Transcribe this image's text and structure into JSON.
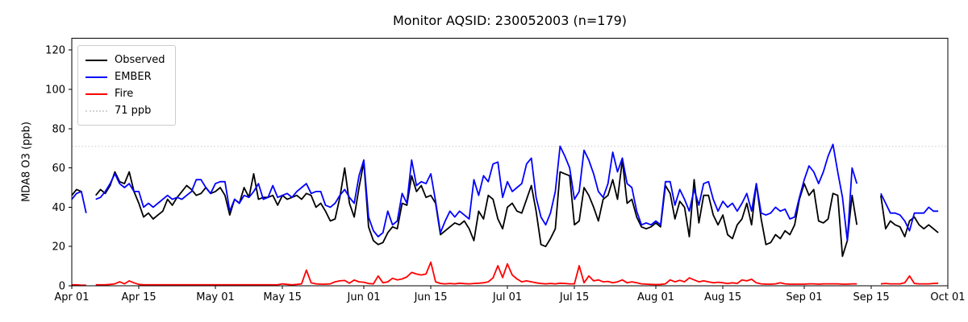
{
  "chart_data": {
    "type": "line",
    "title": "Monitor AQSID: 230052003 (n=179)",
    "xlabel": "",
    "ylabel": "MDA8 O3 (ppb)",
    "x_unit": "day index from Apr 01",
    "xlim": [
      0,
      183
    ],
    "ylim": [
      0,
      126
    ],
    "grid": false,
    "legend_position": "upper left",
    "x_ticks": {
      "days": [
        0,
        14,
        30,
        44,
        61,
        75,
        91,
        105,
        122,
        136,
        153,
        167,
        183
      ],
      "labels": [
        "Apr 01",
        "Apr 15",
        "May 01",
        "May 15",
        "Jun 01",
        "Jun 15",
        "Jul 01",
        "Jul 15",
        "Aug 01",
        "Aug 15",
        "Sep 01",
        "Sep 15",
        "Oct 01"
      ]
    },
    "y_ticks": [
      0,
      20,
      40,
      60,
      80,
      100,
      120
    ],
    "threshold": {
      "value": 71,
      "label": "71 ppb",
      "color": "#d3d3d3",
      "style": "dotted"
    },
    "legend": {
      "observed": "Observed",
      "ember": "EMBER",
      "fire": "Fire",
      "threshold": "71 ppb"
    },
    "series": [
      {
        "name": "Observed",
        "color": "#000000",
        "values": [
          46,
          49,
          48,
          null,
          null,
          46,
          49,
          47,
          51,
          58,
          53,
          52,
          58,
          48,
          42,
          35,
          37,
          34,
          36,
          38,
          44,
          41,
          45,
          48,
          51,
          49,
          46,
          47,
          50,
          47,
          48,
          50,
          46,
          36,
          44,
          42,
          50,
          45,
          57,
          44,
          45,
          45,
          46,
          41,
          46,
          44,
          45,
          46,
          44,
          47,
          46,
          40,
          42,
          38,
          33,
          34,
          45,
          60,
          42,
          35,
          50,
          63,
          30,
          23,
          21,
          22,
          27,
          30,
          29,
          42,
          41,
          56,
          48,
          51,
          45,
          46,
          42,
          26,
          28,
          30,
          32,
          31,
          33,
          29,
          23,
          38,
          34,
          46,
          44,
          34,
          29,
          40,
          42,
          38,
          37,
          44,
          51,
          38,
          21,
          20,
          24,
          29,
          58,
          57,
          56,
          31,
          33,
          50,
          46,
          40,
          33,
          44,
          46,
          54,
          44,
          64,
          42,
          44,
          35,
          30,
          29,
          30,
          32,
          30,
          51,
          47,
          34,
          43,
          40,
          25,
          54,
          32,
          46,
          46,
          36,
          31,
          36,
          26,
          24,
          31,
          34,
          42,
          31,
          52,
          34,
          21,
          22,
          26,
          24,
          28,
          26,
          31,
          44,
          52,
          46,
          49,
          33,
          32,
          34,
          47,
          46,
          15,
          23,
          46,
          31,
          null,
          null,
          null,
          null,
          46,
          29,
          33,
          31,
          30,
          25,
          33,
          35,
          31,
          29,
          31,
          29,
          27
        ]
      },
      {
        "name": "EMBER",
        "color": "#0000ff",
        "values": [
          44,
          47,
          48,
          37,
          null,
          44,
          45,
          48,
          52,
          57,
          52,
          50,
          52,
          48,
          48,
          40,
          42,
          40,
          42,
          44,
          46,
          44,
          45,
          44,
          46,
          48,
          54,
          54,
          50,
          47,
          52,
          53,
          53,
          38,
          44,
          42,
          46,
          45,
          48,
          52,
          44,
          45,
          51,
          45,
          46,
          47,
          45,
          48,
          50,
          52,
          47,
          48,
          48,
          41,
          40,
          42,
          46,
          49,
          45,
          42,
          56,
          64,
          35,
          28,
          25,
          27,
          38,
          31,
          33,
          47,
          42,
          64,
          51,
          53,
          52,
          57,
          43,
          27,
          33,
          38,
          35,
          38,
          36,
          34,
          54,
          46,
          56,
          53,
          62,
          63,
          45,
          53,
          48,
          50,
          52,
          62,
          65,
          45,
          35,
          31,
          37,
          48,
          71,
          66,
          60,
          44,
          48,
          69,
          64,
          57,
          48,
          45,
          52,
          68,
          58,
          65,
          52,
          50,
          38,
          31,
          32,
          31,
          33,
          31,
          53,
          53,
          41,
          49,
          44,
          38,
          49,
          41,
          52,
          53,
          44,
          38,
          43,
          40,
          42,
          38,
          42,
          47,
          38,
          52,
          37,
          36,
          37,
          40,
          38,
          39,
          34,
          35,
          45,
          54,
          61,
          58,
          52,
          58,
          66,
          72,
          58,
          45,
          23,
          60,
          52,
          null,
          null,
          null,
          null,
          47,
          42,
          37,
          37,
          36,
          33,
          28,
          37,
          37,
          37,
          40,
          38,
          38
        ]
      },
      {
        "name": "Fire",
        "color": "#ff0000",
        "values": [
          0.5,
          0.5,
          0.3,
          0.3,
          null,
          0.5,
          0.5,
          0.5,
          0.7,
          1,
          2,
          1,
          2.5,
          1.5,
          0.7,
          0.5,
          0.5,
          0.5,
          0.5,
          0.5,
          0.5,
          0.5,
          0.5,
          0.5,
          0.5,
          0.5,
          0.5,
          0.5,
          0.5,
          0.5,
          0.5,
          0.5,
          0.5,
          0.5,
          0.5,
          0.5,
          0.5,
          0.5,
          0.5,
          0.5,
          0.5,
          0.5,
          0.5,
          0.5,
          1,
          0.7,
          0.5,
          0.7,
          1,
          8,
          1.5,
          1,
          0.8,
          0.8,
          1,
          2,
          2.5,
          2.7,
          1.3,
          2.9,
          2,
          1.8,
          1.2,
          1,
          5,
          1.5,
          2,
          3.8,
          3,
          3.5,
          4.5,
          6.8,
          6,
          5.5,
          6,
          12,
          2,
          1.2,
          1,
          1.2,
          1,
          1.3,
          1.1,
          1,
          1.2,
          1.3,
          1.5,
          2,
          4,
          10.2,
          4.2,
          11.2,
          5.5,
          3.5,
          2,
          2.5,
          2,
          1.5,
          1.2,
          1,
          1.2,
          1,
          1.3,
          1.2,
          1,
          1,
          10.2,
          1.5,
          5,
          2.5,
          3,
          2,
          2.2,
          1.5,
          2,
          3,
          1.5,
          2,
          1.5,
          1,
          0.8,
          0.7,
          0.6,
          0.7,
          1,
          3,
          2,
          2.8,
          2,
          4,
          3,
          2,
          2.5,
          2,
          1.5,
          1.8,
          1.5,
          1.2,
          1.5,
          1.2,
          3,
          2.5,
          3.3,
          1.5,
          1,
          0.8,
          0.8,
          1,
          1.5,
          1,
          0.8,
          0.8,
          0.8,
          0.8,
          1,
          1,
          0.8,
          1,
          1,
          1,
          1,
          0.8,
          0.8,
          1,
          1,
          null,
          null,
          null,
          null,
          1,
          1.2,
          1,
          1,
          1,
          1.5,
          5,
          1.2,
          1,
          1,
          1,
          1.2,
          1.3
        ]
      }
    ]
  }
}
